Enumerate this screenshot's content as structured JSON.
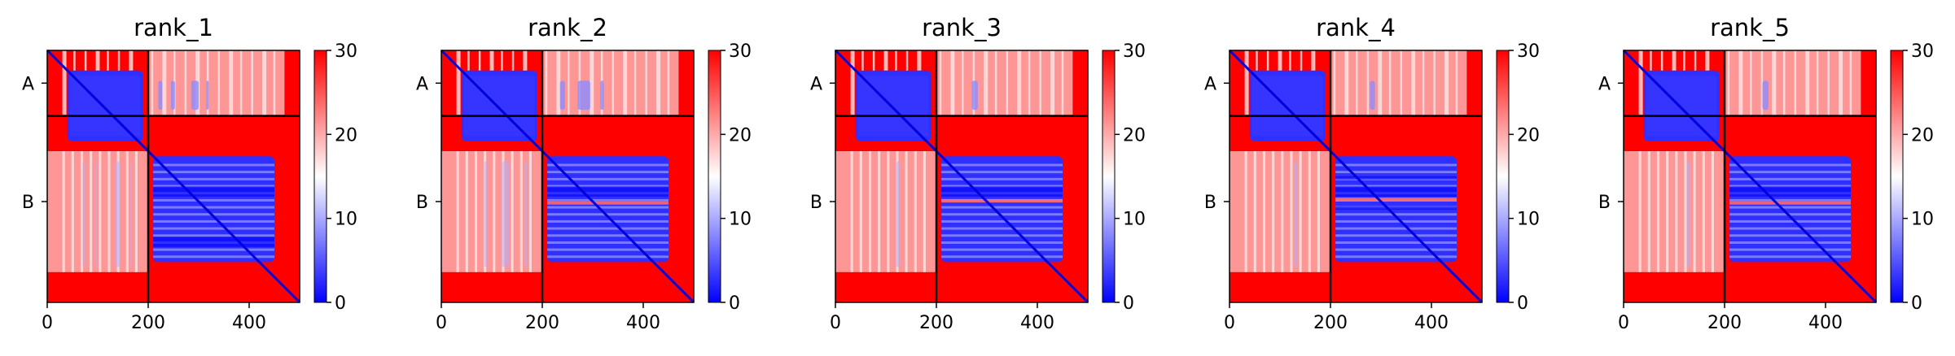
{
  "chart_data": [
    {
      "type": "heatmap",
      "title": "rank_1",
      "xticks": [
        "0",
        "200",
        "400"
      ],
      "yticks": [
        "A",
        "B"
      ],
      "xlim": [
        0,
        500
      ],
      "chain_boundary": 200,
      "colorbar": {
        "ticks": [
          "0",
          "10",
          "20",
          "30"
        ],
        "range": [
          0,
          30
        ],
        "colormap": "bwr"
      },
      "blue_bands_top_right": [
        [
          70,
          78
        ],
        [
          95,
          103
        ],
        [
          135,
          150
        ],
        [
          165,
          170
        ]
      ],
      "blue_rows_lower_right": [
        [
          270,
          290
        ],
        [
          370,
          390
        ]
      ],
      "red_rows_lower_right": []
    },
    {
      "type": "heatmap",
      "title": "rank_2",
      "xticks": [
        "0",
        "200",
        "400"
      ],
      "yticks": [
        "A",
        "B"
      ],
      "xlim": [
        0,
        500
      ],
      "chain_boundary": 200,
      "colorbar": {
        "ticks": [
          "0",
          "10",
          "20",
          "30"
        ],
        "range": [
          0,
          30
        ],
        "colormap": "bwr"
      },
      "blue_bands_top_right": [
        [
          85,
          95
        ],
        [
          120,
          145
        ],
        [
          165,
          172
        ]
      ],
      "blue_rows_lower_right": [
        [
          270,
          290
        ]
      ],
      "red_rows_lower_right": [
        [
          300,
          306
        ]
      ]
    },
    {
      "type": "heatmap",
      "title": "rank_3",
      "xticks": [
        "0",
        "200",
        "400"
      ],
      "yticks": [
        "A",
        "B"
      ],
      "xlim": [
        0,
        500
      ],
      "chain_boundary": 200,
      "colorbar": {
        "ticks": [
          "0",
          "10",
          "20",
          "30"
        ],
        "range": [
          0,
          30
        ],
        "colormap": "bwr"
      },
      "blue_bands_top_right": [
        [
          120,
          132
        ]
      ],
      "blue_rows_lower_right": [
        [
          270,
          290
        ]
      ],
      "red_rows_lower_right": [
        [
          295,
          302
        ]
      ]
    },
    {
      "type": "heatmap",
      "title": "rank_4",
      "xticks": [
        "0",
        "200",
        "400"
      ],
      "yticks": [
        "A",
        "B"
      ],
      "xlim": [
        0,
        500
      ],
      "chain_boundary": 200,
      "colorbar": {
        "ticks": [
          "0",
          "10",
          "20",
          "30"
        ],
        "range": [
          0,
          30
        ],
        "colormap": "bwr"
      },
      "blue_bands_top_right": [
        [
          128,
          138
        ]
      ],
      "blue_rows_lower_right": [
        [
          250,
          256
        ],
        [
          270,
          290
        ],
        [
          310,
          316
        ]
      ],
      "red_rows_lower_right": [
        [
          292,
          300
        ]
      ]
    },
    {
      "type": "heatmap",
      "title": "rank_5",
      "xticks": [
        "0",
        "200",
        "400"
      ],
      "yticks": [
        "A",
        "B"
      ],
      "xlim": [
        0,
        500
      ],
      "chain_boundary": 200,
      "colorbar": {
        "ticks": [
          "0",
          "10",
          "20",
          "30"
        ],
        "range": [
          0,
          30
        ],
        "colormap": "bwr"
      },
      "blue_bands_top_right": [
        [
          125,
          137
        ]
      ],
      "blue_rows_lower_right": [
        [
          270,
          290
        ]
      ],
      "red_rows_lower_right": [
        [
          300,
          306
        ]
      ]
    }
  ]
}
